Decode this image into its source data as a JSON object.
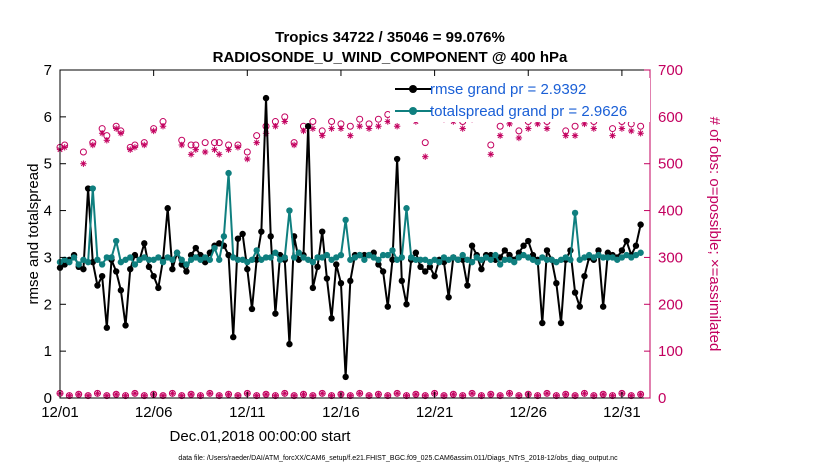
{
  "chart_data": {
    "type": "line",
    "title_line1": "Tropics 34722 / 35046 = 99.076%",
    "title_line2": "RADIOSONDE_U_WIND_COMPONENT @ 400 hPa",
    "xlabel": "Dec.01,2018 00:00:00 start",
    "ylabel": "rmse and totalspread",
    "ylabel_right": "# of obs: o=possible; ×=assimilated",
    "footnote": "data file: /Users/raeder/DAI/ATM_forcXX/CAM6_setup/f.e21.FHIST_BGC.f09_025.CAM6assim.011/Diags_NTrS_2018-12/obs_diag_output.nc",
    "xlim": [
      0,
      31.5
    ],
    "ylim": [
      0,
      7
    ],
    "ylim_right": [
      0,
      700
    ],
    "x_ticks": [
      0,
      5,
      10,
      15,
      20,
      25,
      30
    ],
    "x_tick_labels": [
      "12/01",
      "12/06",
      "12/11",
      "12/16",
      "12/21",
      "12/26",
      "12/31"
    ],
    "y_ticks": [
      0,
      1,
      2,
      3,
      4,
      5,
      6,
      7
    ],
    "y_tick_labels": [
      "0",
      "1",
      "2",
      "3",
      "4",
      "5",
      "6",
      "7"
    ],
    "y_right_ticks": [
      0,
      100,
      200,
      300,
      400,
      500,
      600,
      700
    ],
    "y_right_tick_labels": [
      "0",
      "100",
      "200",
      "300",
      "400",
      "500",
      "600",
      "700"
    ],
    "colors": {
      "rmse": "#000000",
      "spread": "#0f7f7f",
      "obs": "#c3005f",
      "legend_text": "#1a5fd6"
    },
    "series": [
      {
        "name": "rmse grand pr = 2.9392",
        "key": "rmse",
        "x": [
          0,
          0.25,
          0.5,
          0.75,
          1,
          1.25,
          1.5,
          1.75,
          2,
          2.25,
          2.5,
          2.75,
          3,
          3.25,
          3.5,
          3.75,
          4,
          4.25,
          4.5,
          4.75,
          5,
          5.25,
          5.5,
          5.75,
          6,
          6.25,
          6.5,
          6.75,
          7,
          7.25,
          7.5,
          7.75,
          8,
          8.25,
          8.5,
          8.75,
          9,
          9.25,
          9.5,
          9.75,
          10,
          10.25,
          10.5,
          10.75,
          11,
          11.25,
          11.5,
          11.75,
          12,
          12.25,
          12.5,
          12.75,
          13,
          13.25,
          13.5,
          13.75,
          14,
          14.25,
          14.5,
          14.75,
          15,
          15.25,
          15.5,
          15.75,
          16,
          16.25,
          16.5,
          16.75,
          17,
          17.25,
          17.5,
          17.75,
          18,
          18.25,
          18.5,
          18.75,
          19,
          19.25,
          19.5,
          19.75,
          20,
          20.25,
          20.5,
          20.75,
          21,
          21.25,
          21.5,
          21.75,
          22,
          22.25,
          22.5,
          22.75,
          23,
          23.25,
          23.5,
          23.75,
          24,
          24.25,
          24.5,
          24.75,
          25,
          25.25,
          25.5,
          25.75,
          26,
          26.25,
          26.5,
          26.75,
          27,
          27.25,
          27.5,
          27.75,
          28,
          28.25,
          28.5,
          28.75,
          29,
          29.25,
          29.5,
          29.75,
          30,
          30.25,
          30.5,
          30.75,
          31
        ],
        "values": [
          2.78,
          2.85,
          2.95,
          3.05,
          2.8,
          2.75,
          4.47,
          2.9,
          2.4,
          2.6,
          1.5,
          2.95,
          2.7,
          2.3,
          1.55,
          2.75,
          3.05,
          2.95,
          3.3,
          2.8,
          2.6,
          2.35,
          2.95,
          4.05,
          2.75,
          3.1,
          2.85,
          2.7,
          3.05,
          3.2,
          3.05,
          2.9,
          3.1,
          3.25,
          3.3,
          3.25,
          3.05,
          1.3,
          3.4,
          3.5,
          2.75,
          1.9,
          2.95,
          3.55,
          6.4,
          3.45,
          1.8,
          3.05,
          2.95,
          1.15,
          3.45,
          2.95,
          3.05,
          5.8,
          2.35,
          2.8,
          3.55,
          2.55,
          1.7,
          2.85,
          2.45,
          0.45,
          2.5,
          3.05,
          3.05,
          3.05,
          3.05,
          3.1,
          2.85,
          2.7,
          1.95,
          2.95,
          5.1,
          2.5,
          2.0,
          2.95,
          3.1,
          2.8,
          2.7,
          2.8,
          2.6,
          2.95,
          2.9,
          2.15,
          3.0,
          2.95,
          2.95,
          2.4,
          3.25,
          3.05,
          2.75,
          3.05,
          3.05,
          2.95,
          3.0,
          3.15,
          3.05,
          2.95,
          3.1,
          3.25,
          3.35,
          3.05,
          2.95,
          1.6,
          3.15,
          2.95,
          2.45,
          1.6,
          2.95,
          3.15,
          2.25,
          1.95,
          2.6,
          3.0,
          2.95,
          3.15,
          1.95,
          3.1,
          3.05,
          3.0,
          3.15,
          3.35,
          3.05,
          3.25,
          3.7
        ]
      },
      {
        "name": "totalspread grand pr = 2.9626",
        "key": "spread",
        "x": [
          0,
          0.25,
          0.5,
          0.75,
          1,
          1.25,
          1.5,
          1.75,
          2,
          2.25,
          2.5,
          2.75,
          3,
          3.25,
          3.5,
          3.75,
          4,
          4.25,
          4.5,
          4.75,
          5,
          5.25,
          5.5,
          5.75,
          6,
          6.25,
          6.5,
          6.75,
          7,
          7.25,
          7.5,
          7.75,
          8,
          8.25,
          8.5,
          8.75,
          9,
          9.25,
          9.5,
          9.75,
          10,
          10.25,
          10.5,
          10.75,
          11,
          11.25,
          11.5,
          11.75,
          12,
          12.25,
          12.5,
          12.75,
          13,
          13.25,
          13.5,
          13.75,
          14,
          14.25,
          14.5,
          14.75,
          15,
          15.25,
          15.5,
          15.75,
          16,
          16.25,
          16.5,
          16.75,
          17,
          17.25,
          17.5,
          17.75,
          18,
          18.25,
          18.5,
          18.75,
          19,
          19.25,
          19.5,
          19.75,
          20,
          20.25,
          20.5,
          20.75,
          21,
          21.25,
          21.5,
          21.75,
          22,
          22.25,
          22.5,
          22.75,
          23,
          23.25,
          23.5,
          23.75,
          24,
          24.25,
          24.5,
          24.75,
          25,
          25.25,
          25.5,
          25.75,
          26,
          26.25,
          26.5,
          26.75,
          27,
          27.25,
          27.5,
          27.75,
          28,
          28.25,
          28.5,
          28.75,
          29,
          29.25,
          29.5,
          29.75,
          30,
          30.25,
          30.5,
          30.75,
          31
        ],
        "values": [
          2.9,
          2.95,
          2.9,
          3.0,
          2.85,
          2.95,
          2.9,
          4.47,
          2.95,
          2.85,
          3.0,
          3.0,
          3.35,
          2.9,
          2.95,
          3.0,
          2.85,
          2.95,
          3.0,
          2.95,
          2.95,
          3.0,
          2.9,
          3.0,
          2.95,
          3.1,
          2.95,
          2.85,
          2.95,
          3.0,
          2.95,
          3.0,
          2.95,
          3.2,
          2.95,
          3.45,
          4.8,
          3.0,
          2.95,
          2.95,
          2.9,
          2.95,
          3.15,
          2.95,
          3.0,
          3.0,
          3.1,
          2.95,
          3.0,
          4.0,
          3.0,
          3.1,
          3.0,
          2.95,
          2.9,
          3.0,
          3.0,
          3.05,
          2.95,
          3.0,
          3.05,
          3.8,
          2.95,
          3.0,
          3.05,
          2.95,
          3.05,
          3.0,
          2.95,
          3.05,
          3.05,
          3.15,
          2.95,
          3.0,
          4.05,
          3.0,
          2.95,
          2.95,
          2.95,
          2.9,
          2.95,
          2.9,
          3.0,
          2.95,
          3.0,
          2.95,
          3.05,
          2.95,
          2.9,
          3.0,
          2.95,
          3.0,
          2.95,
          3.05,
          2.85,
          2.95,
          2.95,
          2.9,
          3.0,
          3.05,
          3.0,
          2.95,
          2.9,
          3.0,
          2.95,
          2.95,
          2.9,
          2.95,
          3.0,
          2.95,
          3.95,
          2.95,
          3.0,
          3.05,
          3.0,
          3.05,
          3.0,
          3.0,
          3.0,
          2.95,
          3.0,
          3.05,
          3.0,
          3.05,
          3.1
        ]
      }
    ],
    "obs_possible": {
      "x": [
        0,
        0.25,
        1.25,
        1.75,
        2.25,
        2.5,
        3,
        3.25,
        3.75,
        4,
        4.5,
        5,
        5.5,
        6.5,
        7,
        7.25,
        7.75,
        8.25,
        8.5,
        9,
        9.5,
        10,
        10.5,
        11,
        11.5,
        12,
        12.5,
        13,
        13.5,
        14,
        14.5,
        15,
        15.5,
        16,
        16.5,
        17,
        17.5,
        18,
        18.5,
        19,
        19.5,
        20,
        20.5,
        21,
        21.5,
        22,
        22.5,
        23,
        23.5,
        24,
        24.5,
        25,
        25.5,
        26,
        26.5,
        27,
        27.5,
        28,
        28.5,
        29,
        29.5,
        30,
        30.5,
        31
      ],
      "values": [
        535,
        540,
        525,
        545,
        575,
        560,
        580,
        570,
        535,
        540,
        545,
        575,
        590,
        550,
        540,
        540,
        545,
        545,
        545,
        540,
        540,
        525,
        560,
        580,
        590,
        600,
        545,
        580,
        590,
        570,
        590,
        585,
        580,
        595,
        585,
        595,
        605,
        600,
        630,
        605,
        545,
        625,
        610,
        605,
        590,
        610,
        615,
        540,
        580,
        600,
        570,
        590,
        600,
        590,
        625,
        570,
        580,
        600,
        590,
        625,
        575,
        590,
        585,
        580
      ]
    },
    "obs_assimilated": {
      "x": [
        0,
        0.25,
        1.25,
        1.75,
        2.25,
        2.5,
        3,
        3.25,
        3.75,
        4,
        4.5,
        5,
        5.5,
        6.5,
        7,
        7.25,
        7.75,
        8.25,
        8.5,
        9,
        9.5,
        10,
        10.5,
        11,
        11.5,
        12,
        12.5,
        13,
        13.5,
        14,
        14.5,
        15,
        15.5,
        16,
        16.5,
        17,
        17.5,
        18,
        18.5,
        19,
        19.5,
        20,
        20.5,
        21,
        21.5,
        22,
        22.5,
        23,
        23.5,
        24,
        24.5,
        25,
        25.5,
        26,
        26.5,
        27,
        27.5,
        28,
        28.5,
        29,
        29.5,
        30,
        30.5,
        31
      ],
      "values": [
        530,
        535,
        500,
        540,
        565,
        550,
        575,
        565,
        530,
        535,
        540,
        570,
        580,
        540,
        520,
        530,
        525,
        530,
        520,
        530,
        535,
        510,
        545,
        565,
        580,
        590,
        540,
        570,
        575,
        560,
        575,
        575,
        560,
        580,
        575,
        580,
        590,
        580,
        610,
        590,
        515,
        605,
        595,
        590,
        575,
        595,
        600,
        520,
        560,
        585,
        555,
        575,
        585,
        575,
        605,
        560,
        560,
        585,
        575,
        600,
        560,
        575,
        570,
        565
      ]
    },
    "obs_bottom_x": [
      0,
      0.5,
      1,
      1.5,
      2,
      2.5,
      3,
      3.5,
      4,
      4.5,
      5,
      5.5,
      6,
      6.5,
      7,
      7.5,
      8,
      8.5,
      9,
      9.5,
      10,
      10.5,
      11,
      11.5,
      12,
      12.5,
      13,
      13.5,
      14,
      14.5,
      15,
      15.5,
      16,
      16.5,
      17,
      17.5,
      18,
      18.5,
      19,
      19.5,
      20,
      20.5,
      21,
      21.5,
      22,
      22.5,
      23,
      23.5,
      24,
      24.5,
      25,
      25.5,
      26,
      26.5,
      27,
      27.5,
      28,
      28.5,
      29,
      29.5,
      30,
      30.5,
      31
    ],
    "obs_bottom_values": [
      10,
      5,
      8,
      5,
      10,
      5,
      8,
      5,
      10,
      5,
      8,
      5,
      10,
      5,
      8,
      5,
      10,
      5,
      8,
      5,
      10,
      5,
      8,
      5,
      10,
      5,
      8,
      5,
      10,
      5,
      8,
      5,
      10,
      5,
      8,
      5,
      10,
      5,
      8,
      5,
      10,
      5,
      8,
      5,
      10,
      5,
      8,
      5,
      10,
      5,
      8,
      5,
      10,
      5,
      8,
      5,
      10,
      5,
      8,
      5,
      10,
      5,
      8
    ]
  }
}
